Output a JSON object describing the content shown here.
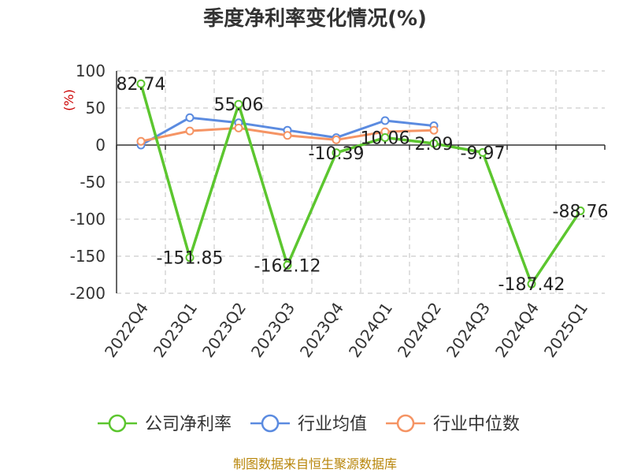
{
  "chart_data": {
    "type": "line",
    "title": "季度净利率变化情况(%)",
    "ylabel": "(%)",
    "ylim": [
      -200,
      100
    ],
    "yticks": [
      100,
      50,
      0,
      -50,
      -100,
      -150,
      -200
    ],
    "categories": [
      "2022Q4",
      "2023Q1",
      "2023Q2",
      "2023Q3",
      "2023Q4",
      "2024Q1",
      "2024Q2",
      "2024Q3",
      "2024Q4",
      "2025Q1"
    ],
    "series": [
      {
        "name": "公司净利率",
        "color": "#5cc62f",
        "values": [
          82.74,
          -151.85,
          55.06,
          -162.12,
          -10.39,
          10.06,
          2.09,
          -9.97,
          -187.42,
          -88.76
        ],
        "labels": [
          "82.74",
          "-151.85",
          "55.06",
          "-162.12",
          "-10.39",
          "10.06",
          "2.09",
          "-9.97",
          "-187.42",
          "-88.76"
        ]
      },
      {
        "name": "行业均值",
        "color": "#5b8be0",
        "values": [
          0,
          37,
          30,
          20,
          10,
          33,
          26,
          null,
          null,
          null
        ]
      },
      {
        "name": "行业中位数",
        "color": "#f59464",
        "values": [
          5,
          19,
          23,
          13,
          7,
          18,
          20,
          null,
          null,
          null
        ]
      }
    ],
    "grid": true,
    "legend_position": "bottom"
  },
  "source": "制图数据来自恒生聚源数据库"
}
